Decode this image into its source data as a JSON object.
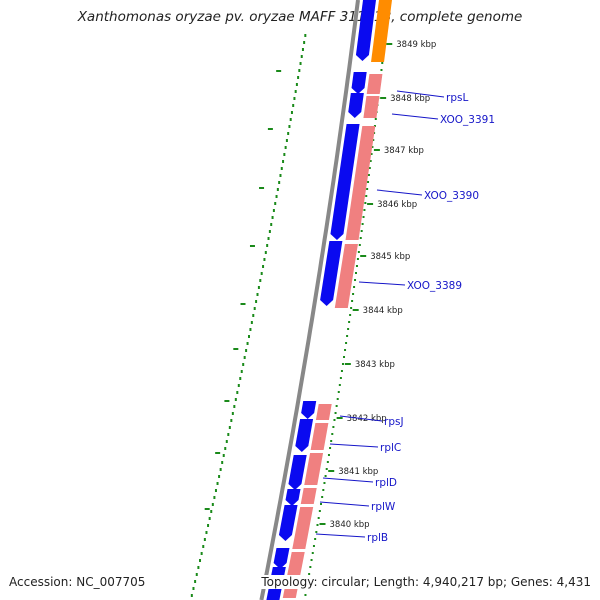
{
  "title": "Xanthomonas oryzae pv. oryzae MAFF 311018, complete genome",
  "footer": {
    "accession": "Accession: NC_007705",
    "summary": "Topology: circular; Length: 4,940,217 bp; Genes: 4,431"
  },
  "ticks": [
    "3849 kbp",
    "3848 kbp",
    "3847 kbp",
    "3846 kbp",
    "3845 kbp",
    "3844 kbp",
    "3843 kbp",
    "3842 kbp",
    "3841 kbp",
    "3840 kbp"
  ],
  "gene_labels": [
    "rpsL",
    "XOO_3391",
    "XOO_3390",
    "XOO_3389",
    "rpsJ",
    "rplC",
    "rplD",
    "rplW",
    "rplB"
  ],
  "colors": {
    "gene_forward": "#0a0af0",
    "cds_feature": "#f08080",
    "other_feature": "#ff8c00",
    "backbone": "#888888",
    "gc_dots": "#1a8a1a",
    "label": "#1515c8"
  }
}
